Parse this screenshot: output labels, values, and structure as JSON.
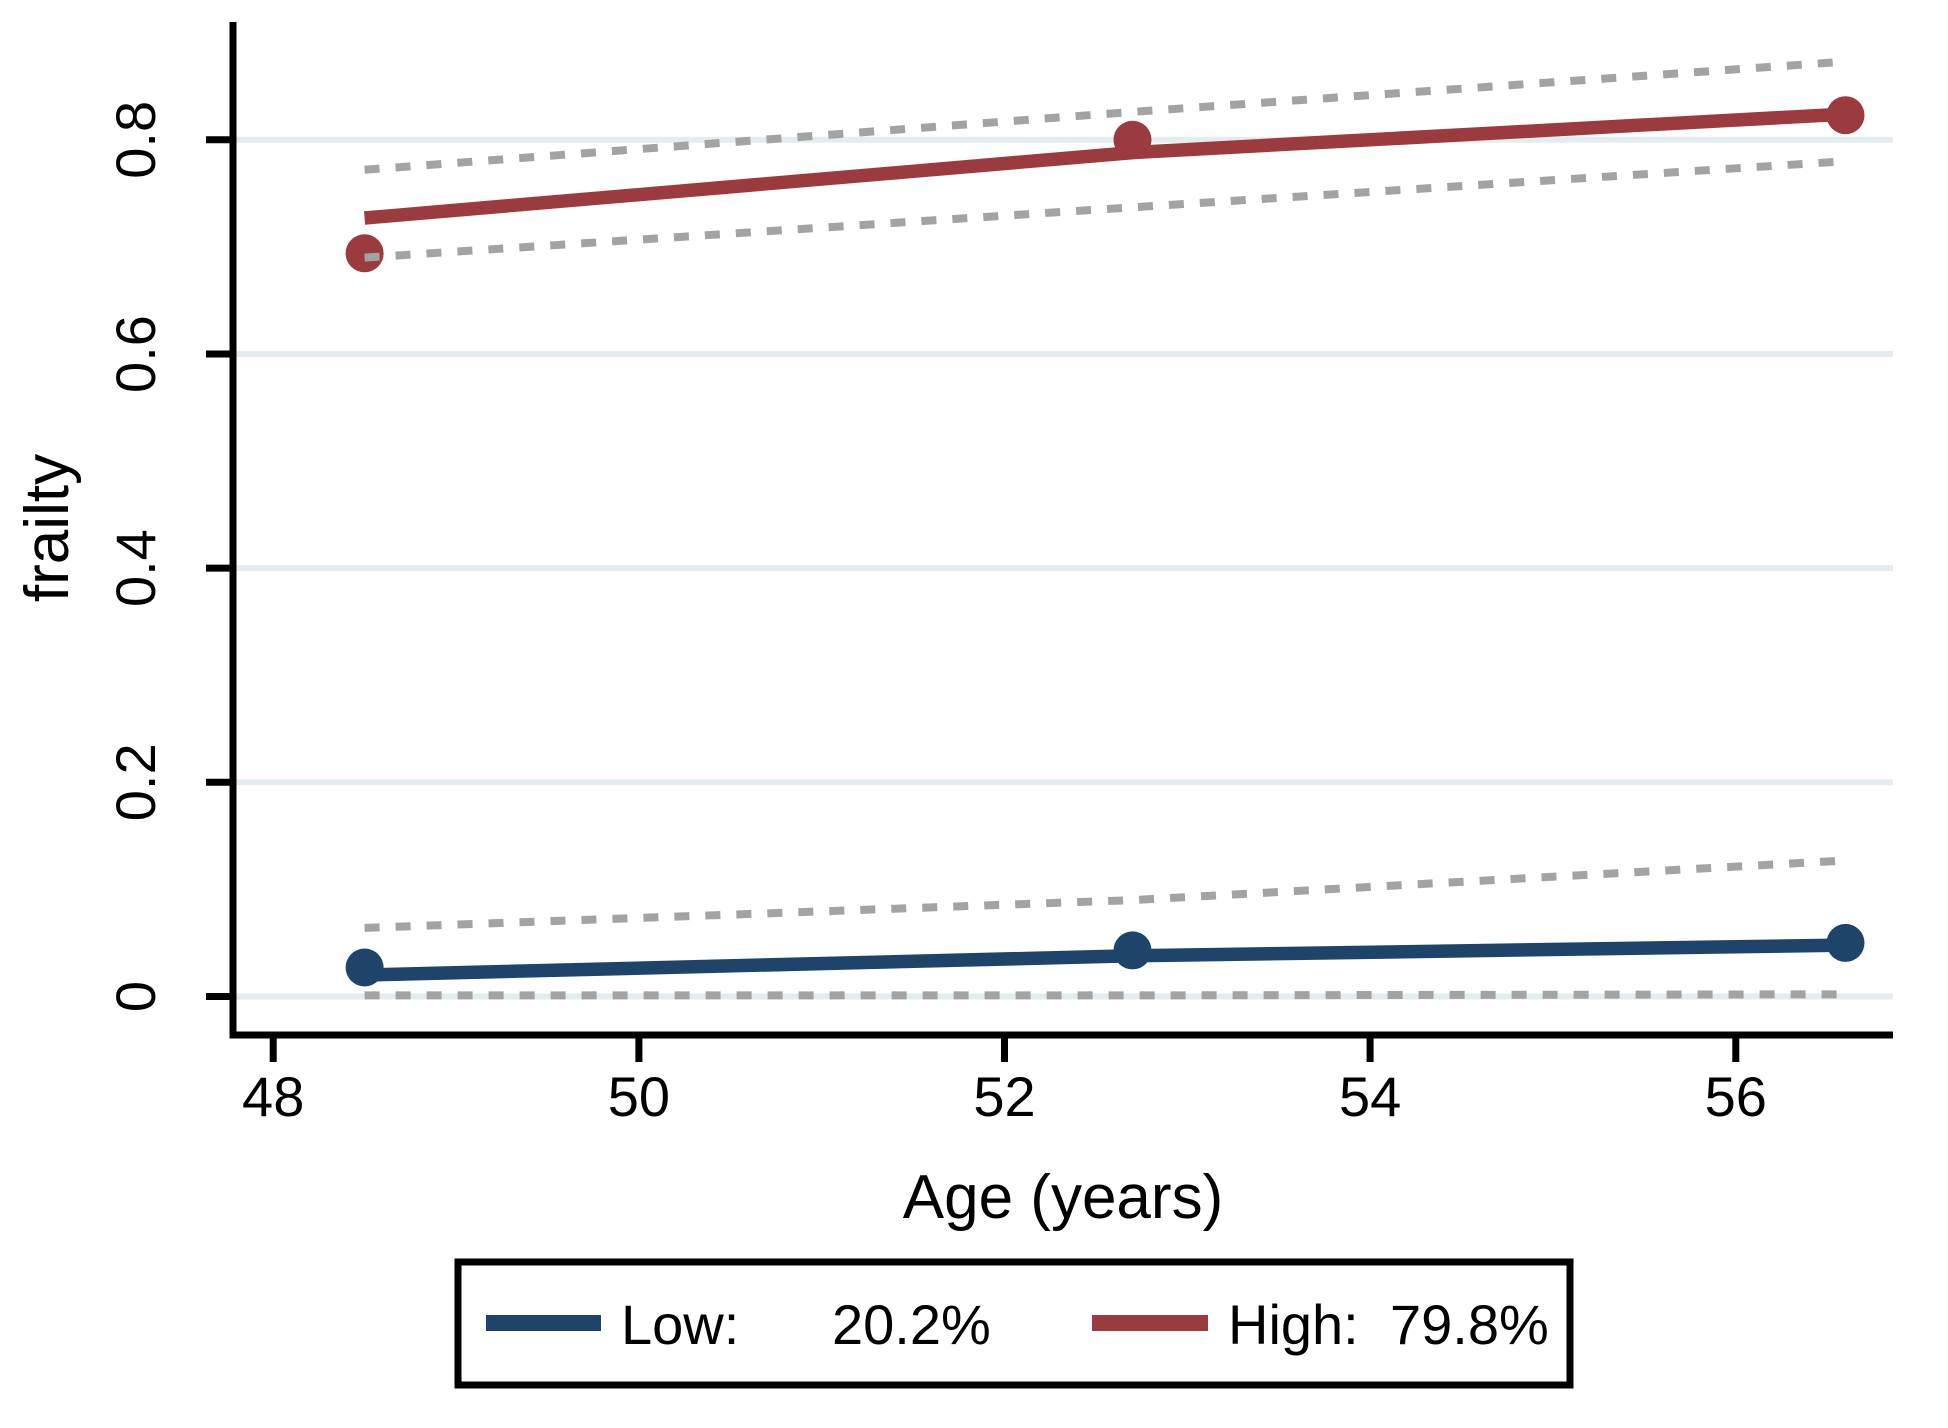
{
  "chart_data": {
    "type": "line",
    "title": "",
    "xlabel": "Age (years)",
    "ylabel": "frailty",
    "xlim": [
      47.78,
      56.86
    ],
    "ylim": [
      -0.036,
      0.91
    ],
    "grid": "horizontal-only",
    "legend_position": "bottom-framed",
    "x_ticks": [
      {
        "v": 48,
        "label": "48"
      },
      {
        "v": 50,
        "label": "50"
      },
      {
        "v": 52,
        "label": "52"
      },
      {
        "v": 54,
        "label": "54"
      },
      {
        "v": 56,
        "label": "56"
      }
    ],
    "y_ticks": [
      {
        "v": 0,
        "label": "0"
      },
      {
        "v": 0.2,
        "label": "0.2"
      },
      {
        "v": 0.4,
        "label": "0.4"
      },
      {
        "v": 0.6,
        "label": "0.6"
      },
      {
        "v": 0.8,
        "label": "0.8"
      }
    ],
    "colors": {
      "low": "#1e4569",
      "high": "#9b3b40",
      "ci": "#a3a3a3",
      "grid": "#e3edf0",
      "axis": "#000000"
    },
    "series": [
      {
        "name": "Low",
        "legend_label": "Low:",
        "legend_value": "20.2%",
        "color_key": "low",
        "line": [
          [
            48.5,
            0.02
          ],
          [
            52.7,
            0.038
          ],
          [
            56.6,
            0.048
          ]
        ],
        "markers": [
          [
            48.5,
            0.027
          ],
          [
            52.7,
            0.043
          ],
          [
            56.6,
            0.05
          ]
        ],
        "ci_upper": [
          [
            48.5,
            0.064
          ],
          [
            52.7,
            0.09
          ],
          [
            56.6,
            0.127
          ]
        ],
        "ci_lower": [
          [
            48.5,
            0.001
          ],
          [
            52.7,
            0.001
          ],
          [
            56.6,
            0.002
          ]
        ]
      },
      {
        "name": "High",
        "legend_label": "High:",
        "legend_value": "79.8%",
        "color_key": "high",
        "line": [
          [
            48.5,
            0.727
          ],
          [
            52.7,
            0.788
          ],
          [
            56.6,
            0.824
          ]
        ],
        "markers": [
          [
            48.5,
            0.694
          ],
          [
            52.7,
            0.8
          ],
          [
            56.6,
            0.823
          ]
        ],
        "ci_upper": [
          [
            48.5,
            0.772
          ],
          [
            52.7,
            0.826
          ],
          [
            56.6,
            0.873
          ]
        ],
        "ci_lower": [
          [
            48.5,
            0.69
          ],
          [
            52.7,
            0.737
          ],
          [
            56.6,
            0.78
          ]
        ]
      }
    ]
  }
}
